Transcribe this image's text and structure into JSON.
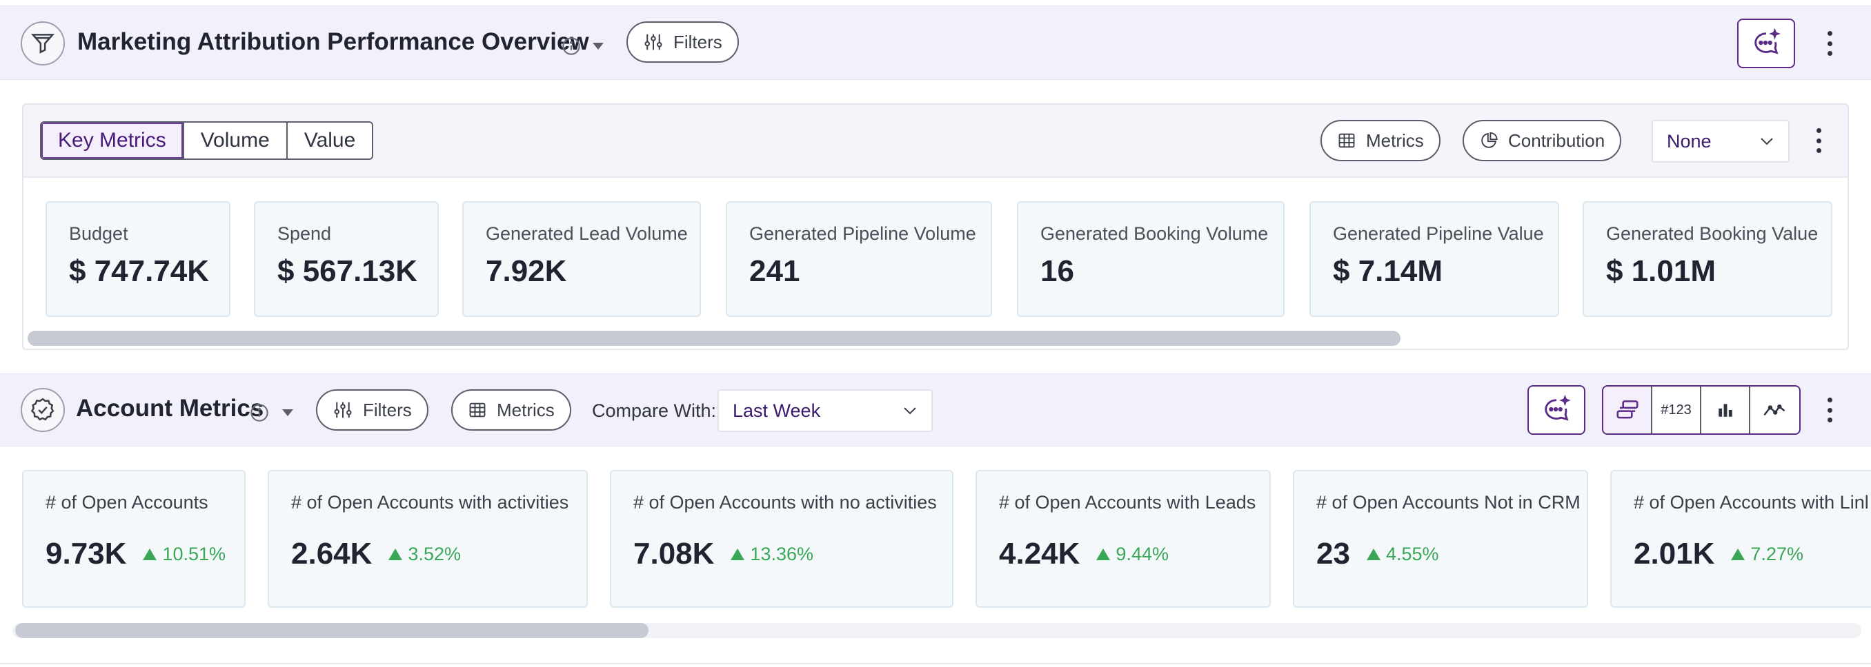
{
  "section1": {
    "title": "Marketing Attribution Performance Overview",
    "filters_label": "Filters",
    "tabs": [
      {
        "label": "Key Metrics",
        "active": true
      },
      {
        "label": "Volume",
        "active": false
      },
      {
        "label": "Value",
        "active": false
      }
    ],
    "metrics_label": "Metrics",
    "contribution_label": "Contribution",
    "select_value": "None",
    "cards": [
      {
        "label": "Budget",
        "value": "$ 747.74K"
      },
      {
        "label": "Spend",
        "value": "$ 567.13K"
      },
      {
        "label": "Generated Lead Volume",
        "value": "7.92K"
      },
      {
        "label": "Generated Pipeline Volume",
        "value": "241"
      },
      {
        "label": "Generated Booking Volume",
        "value": "16"
      },
      {
        "label": "Generated Pipeline Value",
        "value": "$ 7.14M"
      },
      {
        "label": "Generated Booking Value",
        "value": "$ 1.01M"
      }
    ]
  },
  "section2": {
    "title": "Account Metrics",
    "filters_label": "Filters",
    "metrics_label": "Metrics",
    "compare_label": "Compare With:",
    "compare_value": "Last Week",
    "number_format_label": "#123",
    "cards": [
      {
        "label": "# of Open Accounts",
        "value": "9.73K",
        "change": "10.51%"
      },
      {
        "label": "# of Open Accounts with activities",
        "value": "2.64K",
        "change": "3.52%"
      },
      {
        "label": "# of Open Accounts with no activities",
        "value": "7.08K",
        "change": "13.36%"
      },
      {
        "label": "# of Open Accounts with Leads",
        "value": "4.24K",
        "change": "9.44%"
      },
      {
        "label": "# of Open Accounts Not in CRM",
        "value": "23",
        "change": "4.55%"
      },
      {
        "label": "# of Open Accounts with Linl",
        "value": "2.01K",
        "change": "7.27%"
      }
    ]
  },
  "colors": {
    "accent": "#5b2a86",
    "header_bg": "#f2f1fb",
    "card_bg": "#f5f8fb",
    "positive": "#3aa757"
  }
}
